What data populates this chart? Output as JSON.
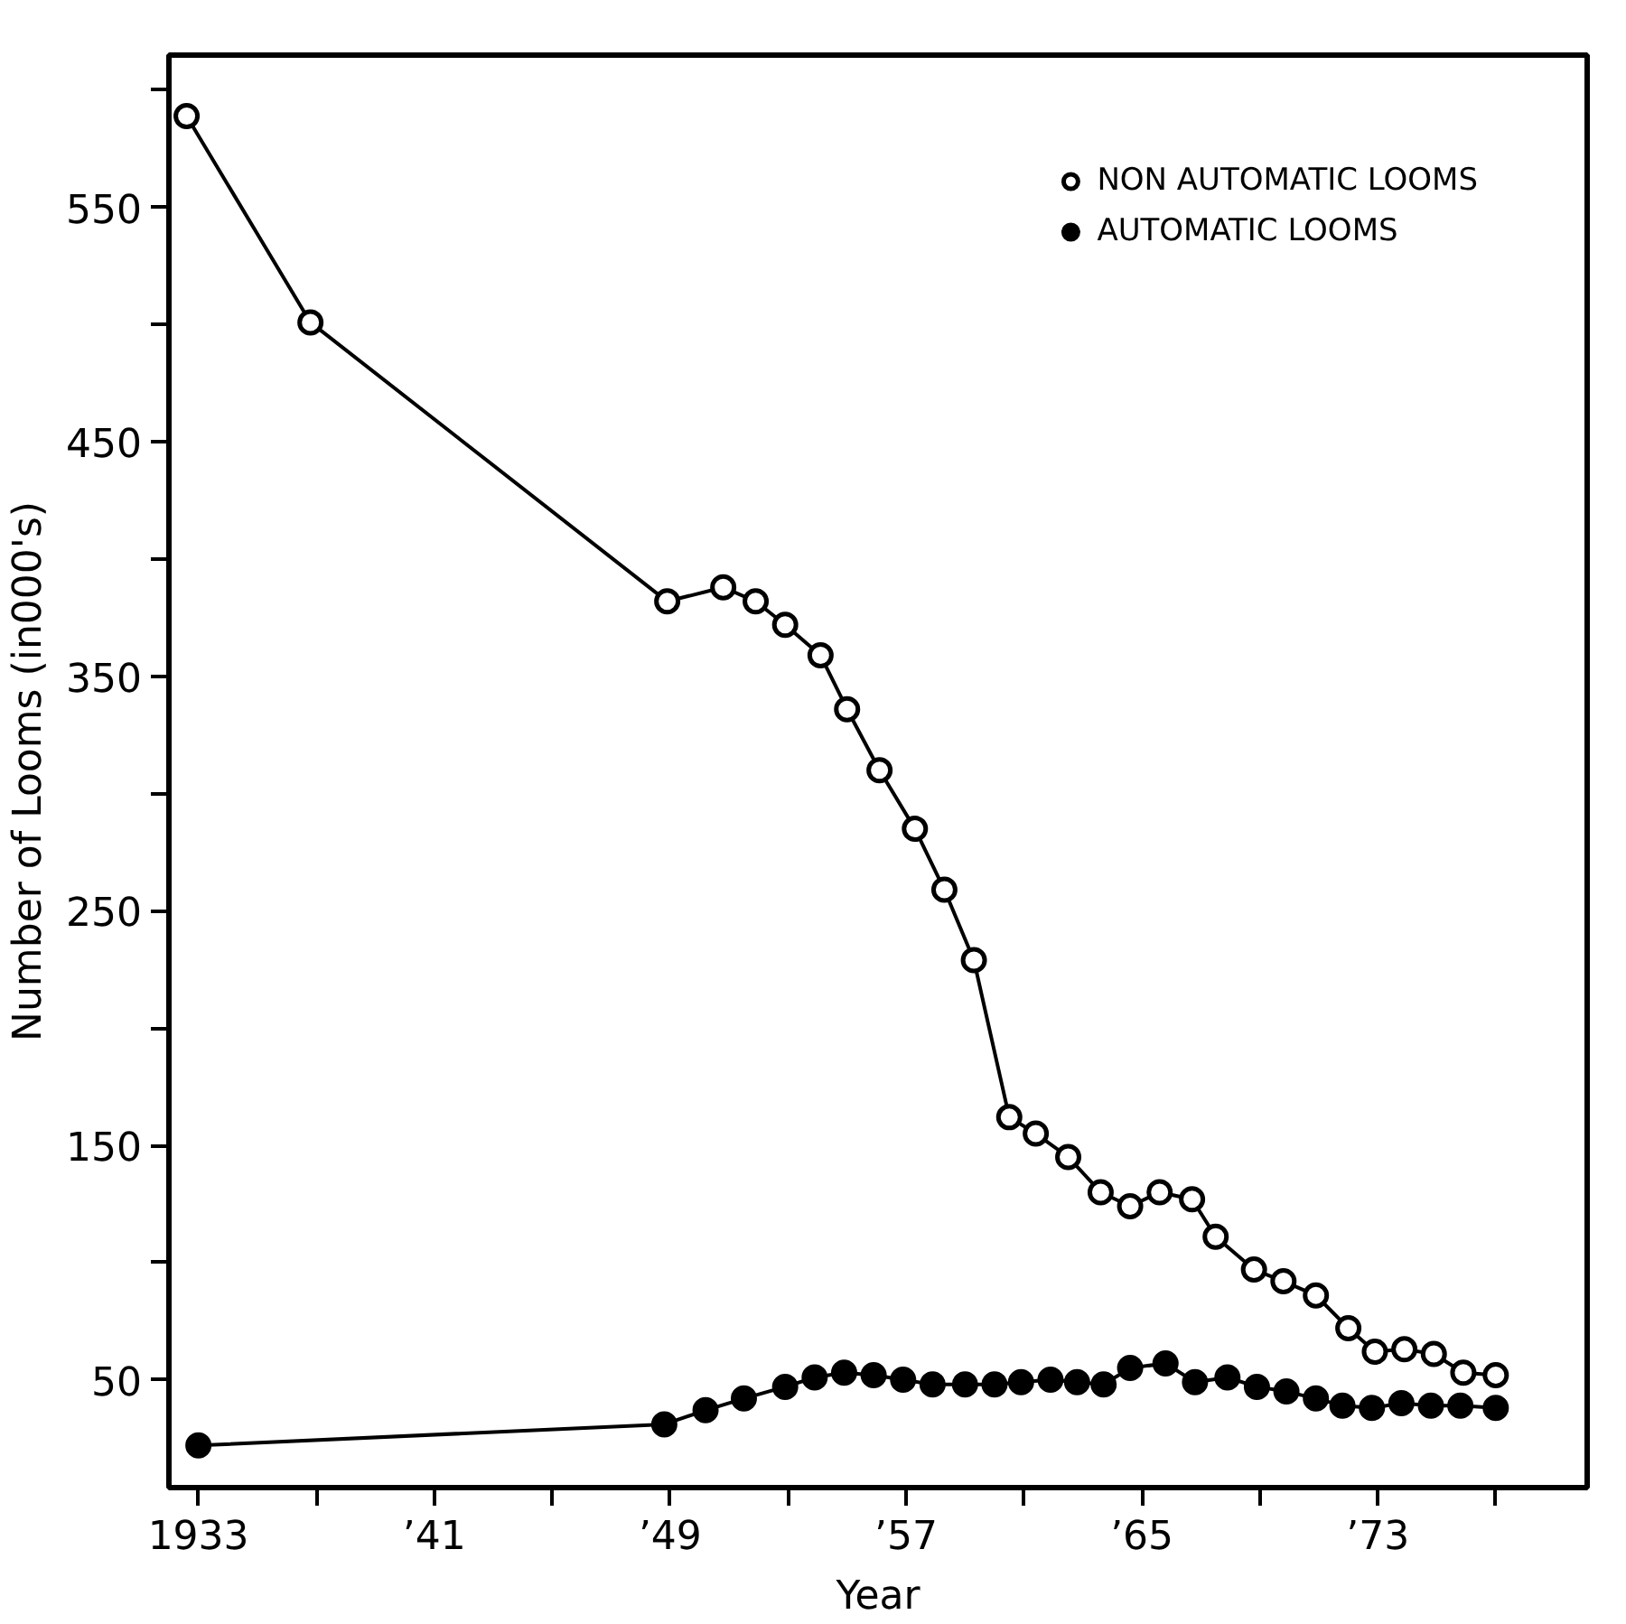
{
  "chart_data": {
    "type": "line",
    "xlabel": "Year",
    "ylabel": "Number of Looms (in000's)",
    "xlim": [
      1932,
      1980.1
    ],
    "ylim": [
      4,
      615
    ],
    "xticks": [
      {
        "value": 1933,
        "label": "1933"
      },
      {
        "value": 1937,
        "label": null
      },
      {
        "value": 1941,
        "label": "’41"
      },
      {
        "value": 1945,
        "label": null
      },
      {
        "value": 1949,
        "label": "’49"
      },
      {
        "value": 1953,
        "label": null
      },
      {
        "value": 1957,
        "label": "’57"
      },
      {
        "value": 1961,
        "label": null
      },
      {
        "value": 1965,
        "label": "’65"
      },
      {
        "value": 1969,
        "label": null
      },
      {
        "value": 1973,
        "label": "’73"
      },
      {
        "value": 1977,
        "label": null
      }
    ],
    "yticks": [
      50,
      {
        "value": 100,
        "label": null
      },
      150,
      {
        "value": 200,
        "label": null
      },
      250,
      {
        "value": 300,
        "label": null
      },
      350,
      {
        "value": 400,
        "label": null
      },
      450,
      {
        "value": 500,
        "label": null
      },
      550,
      {
        "value": 600,
        "label": null
      }
    ],
    "grid": false,
    "legend": "top right",
    "line_style": "solid",
    "series": [
      {
        "name": "NON AUTOMATIC LOOMS",
        "color": "#000000",
        "marker": "circle",
        "x": [
          1932.6,
          1936.8,
          1948.9,
          1950.8,
          1951.9,
          1952.9,
          1954.1,
          1955.0,
          1956.1,
          1957.3,
          1958.3,
          1959.3,
          1960.5,
          1961.4,
          1962.5,
          1963.6,
          1964.6,
          1965.6,
          1966.7,
          1967.5,
          1968.8,
          1969.8,
          1970.9,
          1972.0,
          1972.9,
          1973.9,
          1974.9,
          1975.9,
          1977.0
        ],
        "values": [
          589,
          501,
          382,
          388,
          382,
          372,
          359,
          336,
          310,
          285,
          259,
          229,
          162,
          155,
          145,
          130,
          124,
          130,
          127,
          111,
          97,
          92,
          86,
          72,
          62,
          63,
          61,
          53,
          52
        ]
      },
      {
        "name": "AUTOMATIC LOOMS",
        "color": "#000000",
        "marker": "circle",
        "x": [
          1933,
          1948.8,
          1950.2,
          1951.5,
          1952.9,
          1953.9,
          1954.9,
          1955.9,
          1956.9,
          1957.9,
          1959.0,
          1960.0,
          1960.9,
          1961.9,
          1962.8,
          1963.7,
          1964.6,
          1965.8,
          1966.8,
          1967.9,
          1968.9,
          1969.9,
          1970.9,
          1971.8,
          1972.8,
          1973.8,
          1974.8,
          1975.8,
          1977.0
        ],
        "values": [
          22,
          31,
          37,
          42,
          47,
          51,
          53,
          52,
          50,
          48,
          48,
          48,
          49,
          50,
          49,
          48,
          55,
          57,
          49,
          51,
          47,
          45,
          42,
          39,
          38,
          40,
          39,
          39,
          38
        ]
      }
    ]
  }
}
